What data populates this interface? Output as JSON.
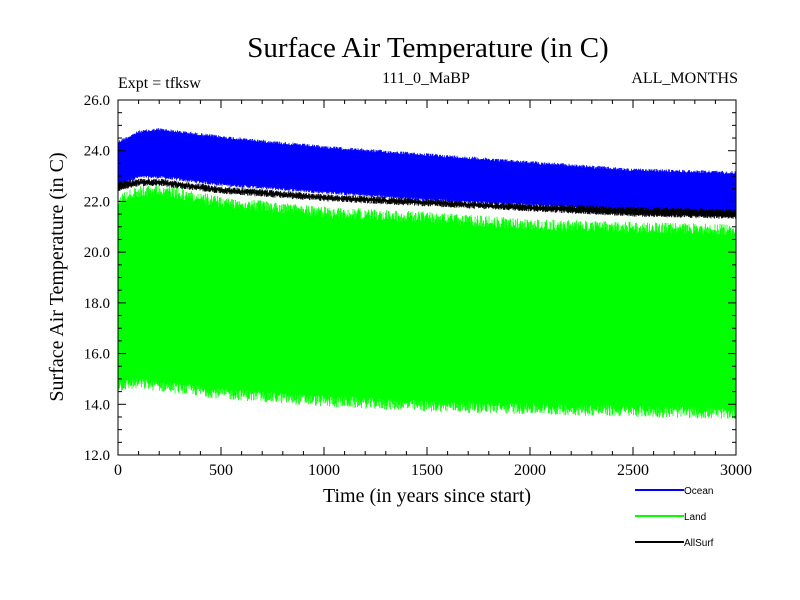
{
  "chart_data": {
    "type": "line",
    "title": "Surface Air Temperature (in C)",
    "subtitle_left": "Expt = tfksw",
    "subtitle_center": "111_0_MaBP",
    "subtitle_right": "ALL_MONTHS",
    "xlabel": "Time (in years since start)",
    "ylabel": "Surface Air Temperature (in C)",
    "xlim": [
      0,
      3000
    ],
    "ylim": [
      12.0,
      26.0
    ],
    "x_ticks": [
      0,
      500,
      1000,
      1500,
      2000,
      2500,
      3000
    ],
    "x_tick_labels": [
      "0",
      "500",
      "1000",
      "1500",
      "2000",
      "2500",
      "3000"
    ],
    "y_ticks": [
      12.0,
      14.0,
      16.0,
      18.0,
      20.0,
      22.0,
      24.0,
      26.0
    ],
    "y_tick_labels": [
      "12.0",
      "14.0",
      "16.0",
      "18.0",
      "20.0",
      "22.0",
      "24.0",
      "26.0"
    ],
    "legend_position": "bottom-right",
    "series": [
      {
        "name": "Ocean",
        "color": "#0000ff",
        "description": "seasonal cycle band",
        "x": [
          0,
          100,
          200,
          500,
          1000,
          1500,
          2000,
          2500,
          3000
        ],
        "upper": [
          24.4,
          24.8,
          24.9,
          24.6,
          24.2,
          23.9,
          23.6,
          23.3,
          23.2
        ],
        "lower": [
          22.6,
          22.9,
          22.9,
          22.6,
          22.3,
          22.0,
          21.8,
          21.6,
          21.5
        ]
      },
      {
        "name": "Land",
        "color": "#00ff00",
        "description": "seasonal cycle band",
        "x": [
          0,
          100,
          200,
          500,
          1000,
          1500,
          2000,
          2500,
          3000
        ],
        "upper": [
          22.3,
          22.6,
          22.7,
          22.2,
          21.8,
          21.6,
          21.3,
          21.2,
          21.1
        ],
        "lower": [
          14.5,
          14.6,
          14.5,
          14.2,
          13.9,
          13.7,
          13.6,
          13.5,
          13.4
        ]
      },
      {
        "name": "AllSurf",
        "color": "#000000",
        "description": "seasonal cycle band",
        "x": [
          0,
          100,
          200,
          500,
          1000,
          1500,
          2000,
          2500,
          3000
        ],
        "upper": [
          22.8,
          22.9,
          22.9,
          22.6,
          22.3,
          22.1,
          21.9,
          21.8,
          21.7
        ],
        "lower": [
          22.4,
          22.6,
          22.6,
          22.3,
          22.0,
          21.8,
          21.6,
          21.4,
          21.3
        ]
      }
    ]
  }
}
